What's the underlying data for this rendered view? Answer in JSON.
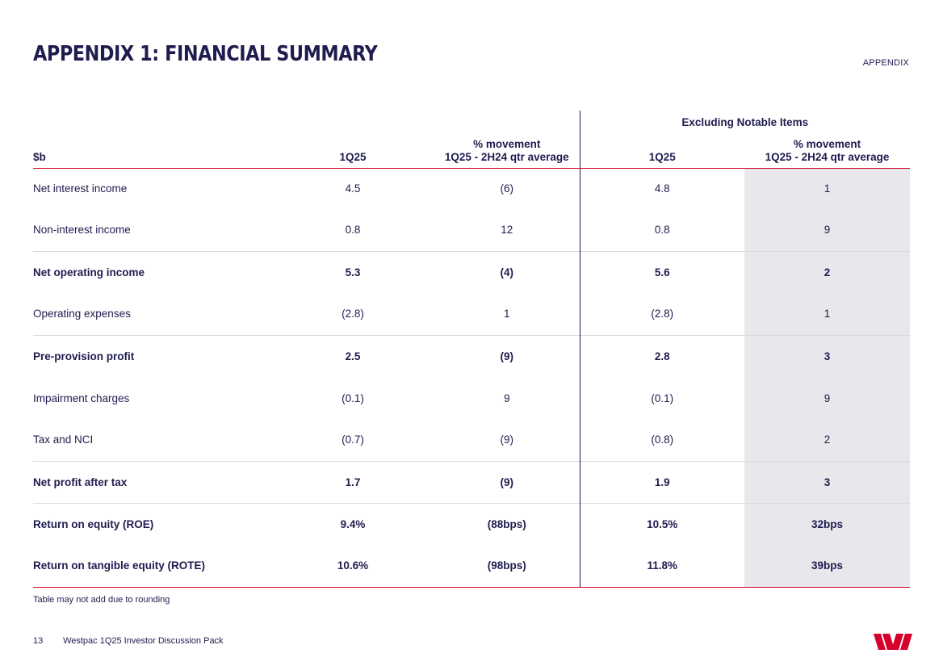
{
  "header": {
    "title": "Appendix 1: Financial Summary",
    "section": "APPENDIX"
  },
  "table": {
    "group_header": "Excluding Notable Items",
    "columns": {
      "label": "$b",
      "col1": "1Q25",
      "col2_line1": "% movement",
      "col2_line2": "1Q25 - 2H24 qtr average",
      "col3": "1Q25",
      "col4_line1": "% movement",
      "col4_line2": "1Q25 - 2H24 qtr average"
    },
    "rows": [
      {
        "label": "Net interest income",
        "v1": "4.5",
        "v2": "(6)",
        "v3": "4.8",
        "v4": "1"
      },
      {
        "label": "Non-interest income",
        "v1": "0.8",
        "v2": "12",
        "v3": "0.8",
        "v4": "9"
      },
      {
        "label": "Net operating income",
        "v1": "5.3",
        "v2": "(4)",
        "v3": "5.6",
        "v4": "2"
      },
      {
        "label": "Operating expenses",
        "v1": "(2.8)",
        "v2": "1",
        "v3": "(2.8)",
        "v4": "1"
      },
      {
        "label": "Pre-provision profit",
        "v1": "2.5",
        "v2": "(9)",
        "v3": "2.8",
        "v4": "3"
      },
      {
        "label": "Impairment charges",
        "v1": "(0.1)",
        "v2": "9",
        "v3": "(0.1)",
        "v4": "9"
      },
      {
        "label": "Tax and NCI",
        "v1": "(0.7)",
        "v2": "(9)",
        "v3": "(0.8)",
        "v4": "2"
      },
      {
        "label": "Net profit after tax",
        "v1": "1.7",
        "v2": "(9)",
        "v3": "1.9",
        "v4": "3"
      },
      {
        "label": "Return on equity (ROE)",
        "v1": "9.4%",
        "v2": "(88bps)",
        "v3": "10.5%",
        "v4": "32bps"
      },
      {
        "label": "Return on tangible equity (ROTE)",
        "v1": "10.6%",
        "v2": "(98bps)",
        "v3": "11.8%",
        "v4": "39bps"
      }
    ]
  },
  "footnote": "Table may not add due to rounding",
  "footer": {
    "page_number": "13",
    "doc_title": "Westpac 1Q25 Investor Discussion Pack"
  },
  "colors": {
    "navy": "#1f1c4f",
    "brand_red": "#d5002b",
    "shade": "#e8e7ec"
  }
}
